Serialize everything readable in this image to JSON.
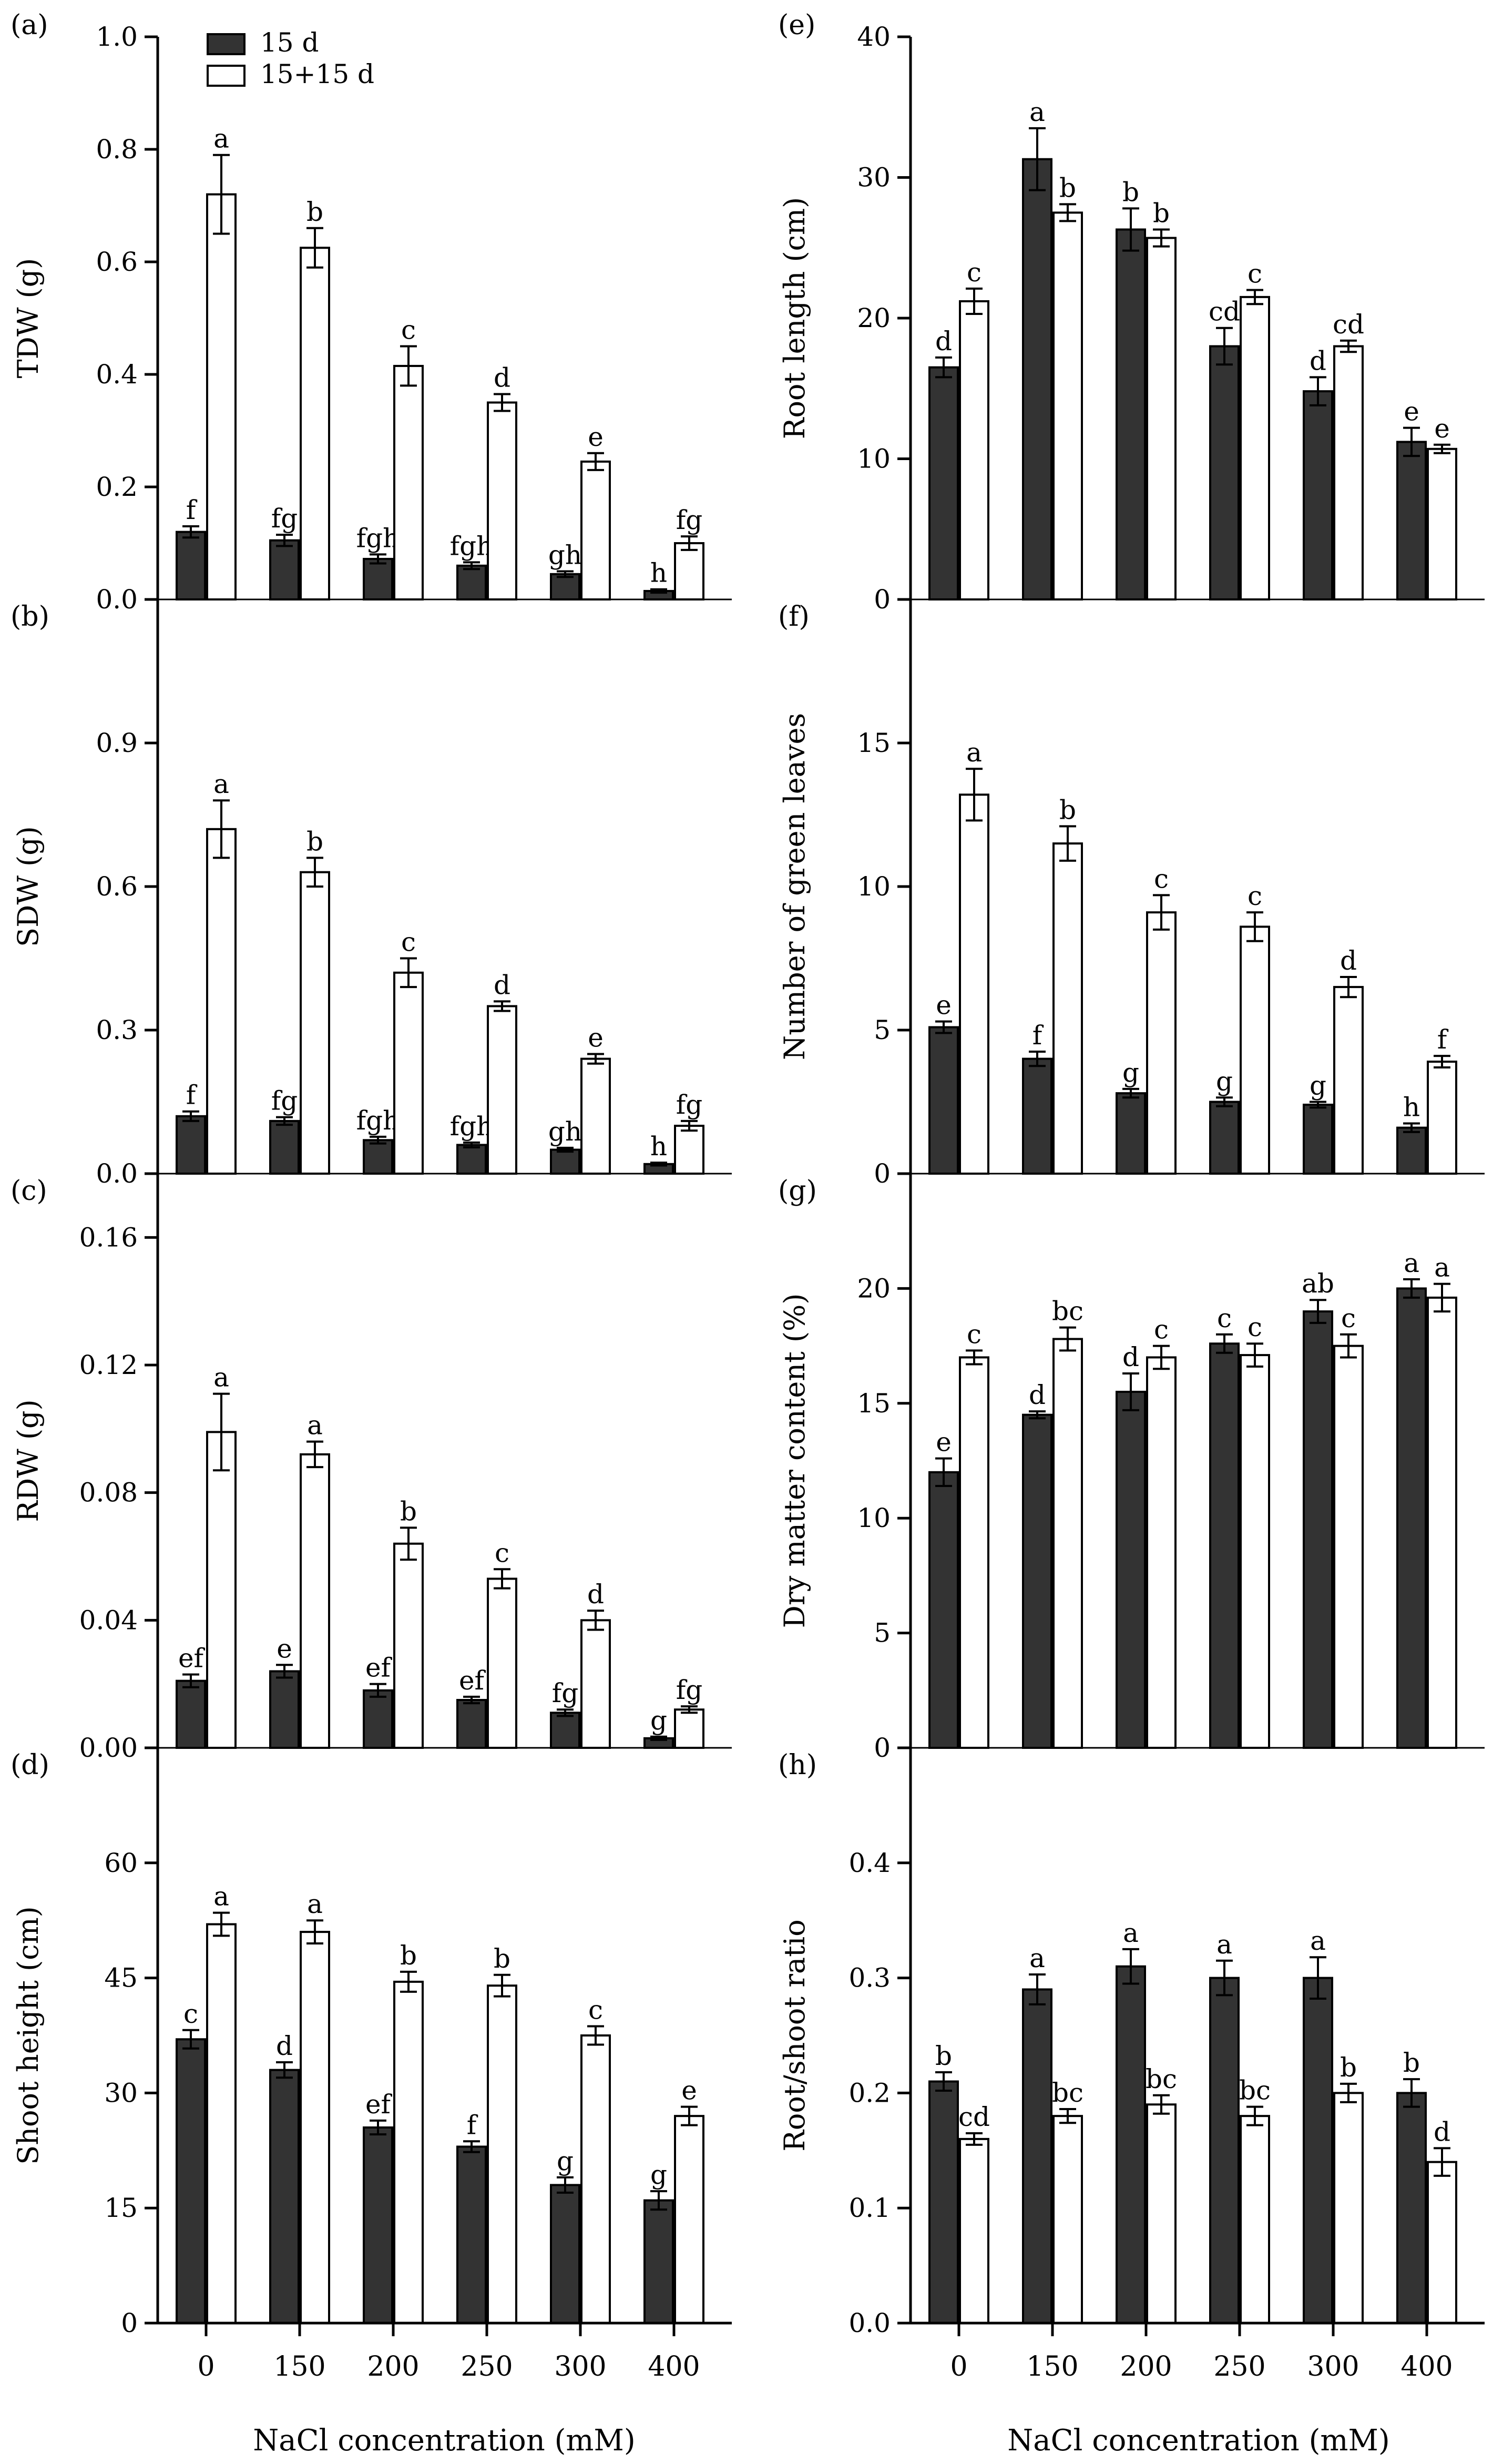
{
  "figure": {
    "legend": [
      {
        "name": "15 d",
        "color": "#333333"
      },
      {
        "name": "15+15 d",
        "color": "#ffffff"
      }
    ],
    "xlabel": "NaCl concentration (mM)"
  },
  "chart_data": [
    {
      "type": "bar",
      "panel": "(a)",
      "ylabel": "TDW (g)",
      "categories": [
        "0",
        "150",
        "200",
        "250",
        "300",
        "400"
      ],
      "ylim": [
        0,
        1.0
      ],
      "yticks": [
        "0.0",
        "0.2",
        "0.4",
        "0.6",
        "0.8",
        "1.0"
      ],
      "series": [
        {
          "name": "15 d",
          "values": [
            0.12,
            0.105,
            0.072,
            0.06,
            0.045,
            0.015
          ],
          "errors": [
            0.01,
            0.01,
            0.008,
            0.006,
            0.005,
            0.003
          ],
          "letters": [
            "f",
            "fg",
            "fgh",
            "fgh",
            "gh",
            "h"
          ]
        },
        {
          "name": "15+15 d",
          "values": [
            0.72,
            0.625,
            0.415,
            0.35,
            0.245,
            0.1
          ],
          "errors": [
            0.07,
            0.035,
            0.035,
            0.015,
            0.015,
            0.012
          ],
          "letters": [
            "a",
            "b",
            "c",
            "d",
            "e",
            "fg"
          ]
        }
      ]
    },
    {
      "type": "bar",
      "panel": "(b)",
      "ylabel": "SDW (g)",
      "categories": [
        "0",
        "150",
        "200",
        "250",
        "300",
        "400"
      ],
      "ylim": [
        0,
        1.2
      ],
      "yticks": [
        "0.0",
        "0.3",
        "0.6",
        "0.9"
      ],
      "series": [
        {
          "name": "15 d",
          "values": [
            0.12,
            0.11,
            0.07,
            0.06,
            0.05,
            0.02
          ],
          "errors": [
            0.01,
            0.008,
            0.007,
            0.005,
            0.004,
            0.003
          ],
          "letters": [
            "f",
            "fg",
            "fgh",
            "fgh",
            "gh",
            "h"
          ]
        },
        {
          "name": "15+15 d",
          "values": [
            0.72,
            0.63,
            0.42,
            0.35,
            0.24,
            0.1
          ],
          "errors": [
            0.06,
            0.03,
            0.03,
            0.01,
            0.01,
            0.01
          ],
          "letters": [
            "a",
            "b",
            "c",
            "d",
            "e",
            "fg"
          ]
        }
      ]
    },
    {
      "type": "bar",
      "panel": "(c)",
      "ylabel": "RDW (g)",
      "categories": [
        "0",
        "150",
        "200",
        "250",
        "300",
        "400"
      ],
      "ylim": [
        0,
        0.18
      ],
      "yticks": [
        "0.00",
        "0.04",
        "0.08",
        "0.12",
        "0.16"
      ],
      "series": [
        {
          "name": "15 d",
          "values": [
            0.021,
            0.024,
            0.018,
            0.015,
            0.011,
            0.003
          ],
          "errors": [
            0.002,
            0.002,
            0.002,
            0.001,
            0.001,
            0.0005
          ],
          "letters": [
            "ef",
            "e",
            "ef",
            "ef",
            "fg",
            "g"
          ]
        },
        {
          "name": "15+15 d",
          "values": [
            0.099,
            0.092,
            0.064,
            0.053,
            0.04,
            0.012
          ],
          "errors": [
            0.012,
            0.004,
            0.005,
            0.003,
            0.003,
            0.001
          ],
          "letters": [
            "a",
            "a",
            "b",
            "c",
            "d",
            "fg"
          ]
        }
      ]
    },
    {
      "type": "bar",
      "panel": "(d)",
      "ylabel": "Shoot height (cm)",
      "categories": [
        "0",
        "150",
        "200",
        "250",
        "300",
        "400"
      ],
      "ylim": [
        0,
        75
      ],
      "yticks": [
        "0",
        "15",
        "30",
        "45",
        "60"
      ],
      "series": [
        {
          "name": "15 d",
          "values": [
            37,
            33,
            25.5,
            23,
            18,
            16
          ],
          "errors": [
            1.2,
            1.0,
            0.9,
            0.7,
            1.0,
            1.2
          ],
          "letters": [
            "c",
            "d",
            "ef",
            "f",
            "g",
            "g"
          ]
        },
        {
          "name": "15+15 d",
          "values": [
            52,
            51,
            44.5,
            44,
            37.5,
            27
          ],
          "errors": [
            1.5,
            1.5,
            1.3,
            1.4,
            1.2,
            1.2
          ],
          "letters": [
            "a",
            "a",
            "b",
            "b",
            "c",
            "e"
          ]
        }
      ]
    },
    {
      "type": "bar",
      "panel": "(e)",
      "ylabel": "Root length (cm)",
      "categories": [
        "0",
        "150",
        "200",
        "250",
        "300",
        "400"
      ],
      "ylim": [
        0,
        40
      ],
      "yticks": [
        "0",
        "10",
        "20",
        "30",
        "40"
      ],
      "series": [
        {
          "name": "15 d",
          "values": [
            16.5,
            31.3,
            26.3,
            18,
            14.8,
            11.2
          ],
          "errors": [
            0.7,
            2.2,
            1.5,
            1.3,
            1.0,
            1.0
          ],
          "letters": [
            "d",
            "a",
            "b",
            "cd",
            "d",
            "e"
          ]
        },
        {
          "name": "15+15 d",
          "values": [
            21.2,
            27.5,
            25.7,
            21.5,
            18,
            10.7
          ],
          "errors": [
            0.9,
            0.6,
            0.6,
            0.5,
            0.4,
            0.3
          ],
          "letters": [
            "c",
            "b",
            "b",
            "c",
            "cd",
            "e"
          ]
        }
      ]
    },
    {
      "type": "bar",
      "panel": "(f)",
      "ylabel": "Number of green leaves",
      "categories": [
        "0",
        "150",
        "200",
        "250",
        "300",
        "400"
      ],
      "ylim": [
        0,
        20
      ],
      "yticks": [
        "0",
        "5",
        "10",
        "15"
      ],
      "series": [
        {
          "name": "15 d",
          "values": [
            5.1,
            4.0,
            2.8,
            2.5,
            2.4,
            1.6
          ],
          "errors": [
            0.2,
            0.25,
            0.15,
            0.15,
            0.1,
            0.15
          ],
          "letters": [
            "e",
            "f",
            "g",
            "g",
            "g",
            "h"
          ]
        },
        {
          "name": "15+15 d",
          "values": [
            13.2,
            11.5,
            9.1,
            8.6,
            6.5,
            3.9
          ],
          "errors": [
            0.9,
            0.6,
            0.6,
            0.5,
            0.35,
            0.2
          ],
          "letters": [
            "a",
            "b",
            "c",
            "c",
            "d",
            "f"
          ]
        }
      ]
    },
    {
      "type": "bar",
      "panel": "(g)",
      "ylabel": "Dry matter content (%)",
      "categories": [
        "0",
        "150",
        "200",
        "250",
        "300",
        "400"
      ],
      "ylim": [
        0,
        25
      ],
      "yticks": [
        "0",
        "5",
        "10",
        "15",
        "20"
      ],
      "series": [
        {
          "name": "15 d",
          "values": [
            12,
            14.5,
            15.5,
            17.6,
            19,
            20
          ],
          "errors": [
            0.6,
            0.15,
            0.8,
            0.4,
            0.5,
            0.4
          ],
          "letters": [
            "e",
            "d",
            "d",
            "c",
            "ab",
            "a"
          ]
        },
        {
          "name": "15+15 d",
          "values": [
            17,
            17.8,
            17,
            17.1,
            17.5,
            19.6
          ],
          "errors": [
            0.3,
            0.5,
            0.5,
            0.5,
            0.5,
            0.6
          ],
          "letters": [
            "c",
            "bc",
            "c",
            "c",
            "c",
            "a"
          ]
        }
      ]
    },
    {
      "type": "bar",
      "panel": "(h)",
      "ylabel": "Root/shoot ratio",
      "categories": [
        "0",
        "150",
        "200",
        "250",
        "300",
        "400"
      ],
      "ylim": [
        0,
        0.5
      ],
      "yticks": [
        "0.0",
        "0.1",
        "0.2",
        "0.3",
        "0.4"
      ],
      "series": [
        {
          "name": "15 d",
          "values": [
            0.21,
            0.29,
            0.31,
            0.3,
            0.3,
            0.2
          ],
          "errors": [
            0.008,
            0.013,
            0.015,
            0.015,
            0.018,
            0.012
          ],
          "letters": [
            "b",
            "a",
            "a",
            "a",
            "a",
            "b"
          ]
        },
        {
          "name": "15+15 d",
          "values": [
            0.16,
            0.18,
            0.19,
            0.18,
            0.2,
            0.14
          ],
          "errors": [
            0.005,
            0.006,
            0.008,
            0.008,
            0.008,
            0.012
          ],
          "letters": [
            "cd",
            "bc",
            "bc",
            "bc",
            "b",
            "d"
          ]
        }
      ]
    }
  ]
}
